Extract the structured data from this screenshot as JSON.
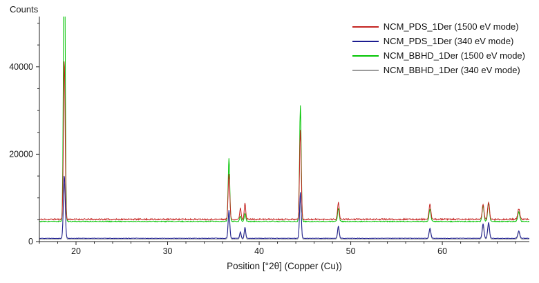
{
  "chart_data": {
    "type": "line",
    "title": "",
    "ylabel": "Counts",
    "xlabel": "Position [°2θ] (Copper (Cu))",
    "xlim": [
      16,
      69.5
    ],
    "ylim": [
      0,
      51500
    ],
    "x_ticks": [
      20,
      30,
      40,
      50,
      60
    ],
    "x_minor_step": 2,
    "y_ticks": [
      0,
      20000,
      40000
    ],
    "y_tick_labels": [
      "0",
      "20000",
      "40000"
    ],
    "y_minor_step": 5000,
    "grid": false,
    "legend_position": "top-right",
    "axis_color": "#222222",
    "draw_order": [
      3,
      1,
      2,
      0
    ],
    "series": [
      {
        "name": "NCM_PDS_1Der (1500 eV mode)",
        "color": "#c42320",
        "baseline": 5100,
        "noise": 160,
        "seed": 11,
        "peaks": [
          [
            18.72,
            37000,
            0.09
          ],
          [
            36.7,
            10500,
            0.09
          ],
          [
            37.95,
            2600,
            0.08
          ],
          [
            38.45,
            3900,
            0.08
          ],
          [
            44.5,
            20500,
            0.09
          ],
          [
            48.65,
            3900,
            0.09
          ],
          [
            58.65,
            3400,
            0.1
          ],
          [
            64.45,
            3500,
            0.1
          ],
          [
            65.05,
            3900,
            0.1
          ],
          [
            68.35,
            2400,
            0.11
          ]
        ]
      },
      {
        "name": "NCM_PDS_1Der (340 eV mode)",
        "color": "#1c1c90",
        "baseline": 750,
        "noise": 55,
        "seed": 22,
        "peaks": [
          [
            18.72,
            14500,
            0.1
          ],
          [
            36.7,
            6500,
            0.09
          ],
          [
            37.95,
            1500,
            0.08
          ],
          [
            38.45,
            2600,
            0.08
          ],
          [
            44.5,
            10500,
            0.09
          ],
          [
            48.65,
            2800,
            0.09
          ],
          [
            58.65,
            2300,
            0.1
          ],
          [
            64.45,
            3300,
            0.1
          ],
          [
            65.05,
            3600,
            0.1
          ],
          [
            68.35,
            1700,
            0.11
          ]
        ]
      },
      {
        "name": "NCM_BBHD_1Der (1500 eV mode)",
        "color": "#00c400",
        "baseline": 4600,
        "noise": 110,
        "seed": 33,
        "peaks": [
          [
            18.72,
            75000,
            0.09
          ],
          [
            36.7,
            14500,
            0.09
          ],
          [
            37.95,
            1300,
            0.08
          ],
          [
            38.45,
            1900,
            0.08
          ],
          [
            44.5,
            26500,
            0.09
          ],
          [
            48.65,
            3000,
            0.09
          ],
          [
            58.65,
            2800,
            0.1
          ],
          [
            64.45,
            3600,
            0.1
          ],
          [
            65.05,
            4300,
            0.1
          ],
          [
            68.35,
            2200,
            0.11
          ]
        ]
      },
      {
        "name": "NCM_BBHD_1Der (340 eV mode)",
        "color": "#9c9c9c",
        "baseline": 550,
        "noise": 40,
        "seed": 44,
        "peaks": [
          [
            18.72,
            13000,
            0.1
          ],
          [
            36.7,
            5800,
            0.09
          ],
          [
            37.95,
            1300,
            0.08
          ],
          [
            38.45,
            2300,
            0.08
          ],
          [
            44.5,
            9500,
            0.09
          ],
          [
            48.65,
            2500,
            0.09
          ],
          [
            58.65,
            2000,
            0.1
          ],
          [
            64.45,
            2900,
            0.1
          ],
          [
            65.05,
            3200,
            0.1
          ],
          [
            68.35,
            1500,
            0.11
          ]
        ]
      }
    ]
  }
}
